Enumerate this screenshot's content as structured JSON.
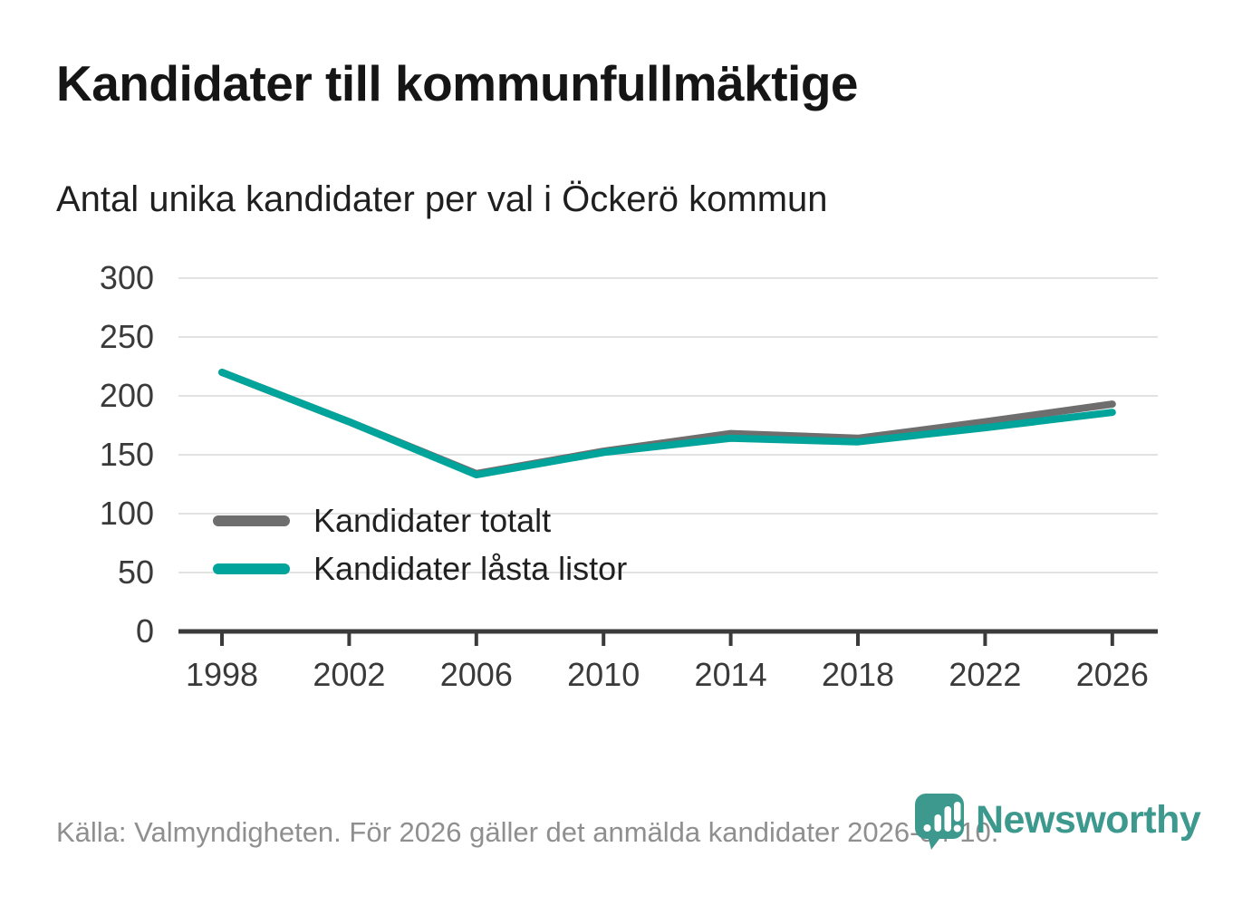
{
  "title": "Kandidater till kommunfullmäktige",
  "subtitle": "Antal unika kandidater per val i Öckerö kommun",
  "footer": {
    "source": "Källa: Valmyndigheten. För 2026 gäller det anmälda kandidater 2026-04-10."
  },
  "logo": {
    "name": "Newsworthy",
    "color": "#3d998e"
  },
  "legend": {
    "items": [
      {
        "label": "Kandidater totalt",
        "color": "#6e6e6e"
      },
      {
        "label": "Kandidater låsta listor",
        "color": "#00a49b"
      }
    ]
  },
  "colors": {
    "axis": "#3b3b3b",
    "grid": "#e2e2e2",
    "tick_label": "#3a3a3a",
    "series_total": "#6e6e6e",
    "series_locked": "#00a49b"
  },
  "chart_data": {
    "type": "line",
    "title": "Kandidater till kommunfullmäktige",
    "subtitle": "Antal unika kandidater per val i Öckerö kommun",
    "x": [
      1998,
      2002,
      2006,
      2010,
      2014,
      2018,
      2022,
      2026
    ],
    "series": [
      {
        "name": "Kandidater totalt",
        "color": "#6e6e6e",
        "values": [
          220,
          178,
          134,
          153,
          168,
          164,
          178,
          193
        ]
      },
      {
        "name": "Kandidater låsta listor",
        "color": "#00a49b",
        "values": [
          220,
          178,
          133,
          152,
          164,
          161,
          173,
          186
        ]
      }
    ],
    "xlabel": "",
    "ylabel": "",
    "ylim": [
      0,
      300
    ],
    "yticks": [
      0,
      50,
      100,
      150,
      200,
      250,
      300
    ],
    "grid": true,
    "legend_position": "inside-left"
  }
}
